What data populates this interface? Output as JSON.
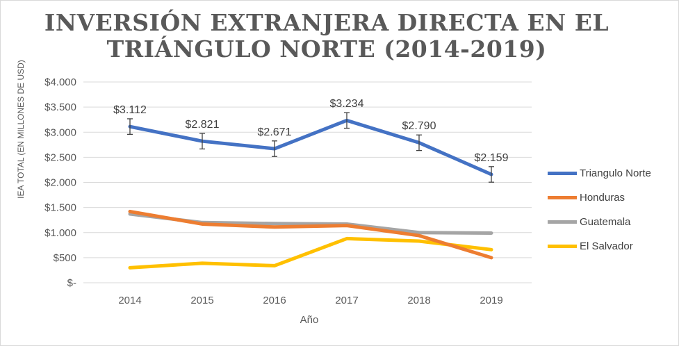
{
  "chart_data": {
    "type": "line",
    "title": "INVERSIÓN EXTRANJERA DIRECTA EN EL TRIÁNGULO NORTE (2014-2019)",
    "xlabel": "Año",
    "ylabel": "IEA TOTAL  (EN MILLONES DE USD)",
    "categories": [
      "2014",
      "2015",
      "2016",
      "2017",
      "2018",
      "2019"
    ],
    "ylim": [
      0,
      4000
    ],
    "yticks": [
      0,
      500,
      1000,
      1500,
      2000,
      2500,
      3000,
      3500,
      4000
    ],
    "ytick_labels": [
      "$-",
      "$500",
      "$1.000",
      "$1.500",
      "$2.000",
      "$2.500",
      "$3.000",
      "$3.500",
      "$4.000"
    ],
    "grid": true,
    "legend_position": "right",
    "series": [
      {
        "name": "Triangulo Norte",
        "color": "#4472c4",
        "values": [
          3112,
          2821,
          2671,
          3234,
          2790,
          2159
        ],
        "data_labels": [
          "$3.112",
          "$2.821",
          "$2.671",
          "$3.234",
          "$2.790",
          "$2.159"
        ],
        "error_bars": [
          155,
          155,
          155,
          155,
          155,
          155
        ]
      },
      {
        "name": "Honduras",
        "color": "#ed7d31",
        "values": [
          1420,
          1170,
          1110,
          1140,
          940,
          500
        ]
      },
      {
        "name": "Guatemala",
        "color": "#a5a5a5",
        "values": [
          1370,
          1200,
          1180,
          1170,
          1000,
          990
        ]
      },
      {
        "name": "El Salvador",
        "color": "#ffc000",
        "values": [
          300,
          390,
          340,
          880,
          830,
          660
        ]
      }
    ]
  }
}
